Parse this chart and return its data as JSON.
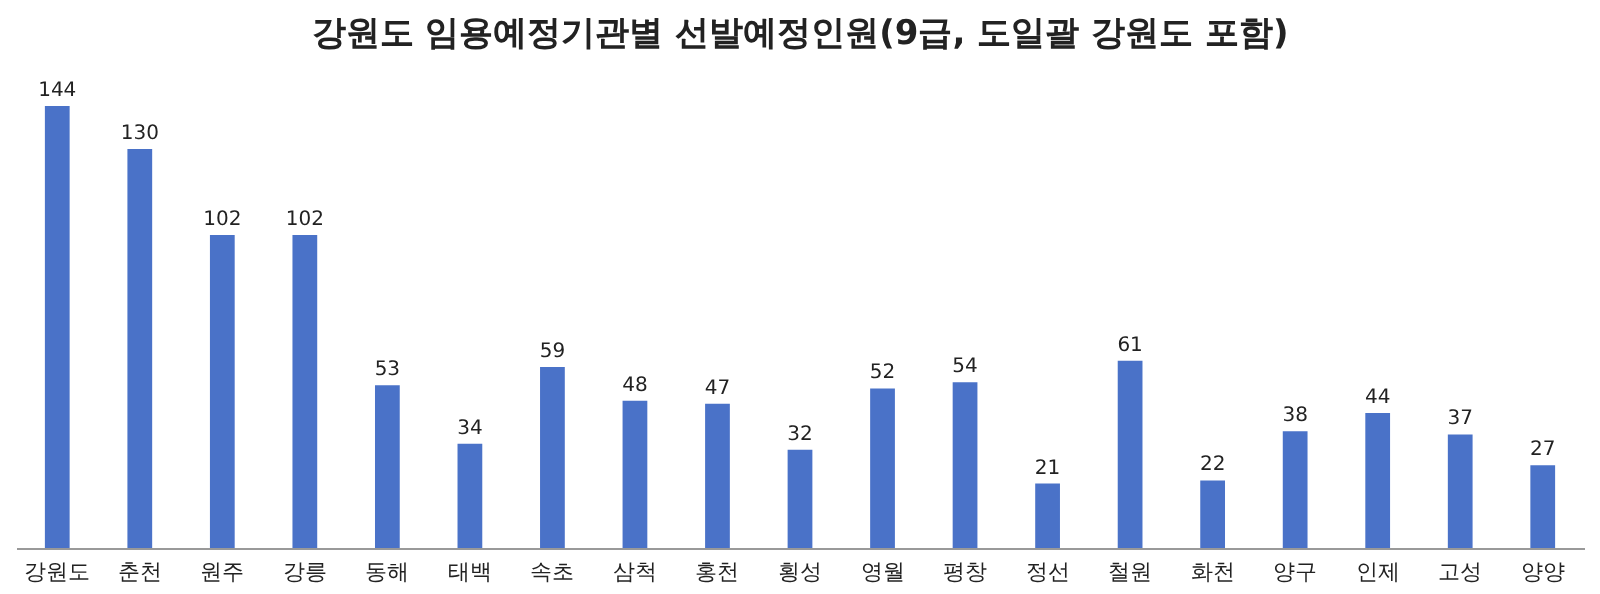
{
  "chart_data": {
    "type": "bar",
    "title": "강원도 임용예정기관별 선발예정인원(9급, 도일괄 강원도 포함)",
    "categories": [
      "강원도",
      "춘천",
      "원주",
      "강릉",
      "동해",
      "태백",
      "속초",
      "삼척",
      "홍천",
      "횡성",
      "영월",
      "평창",
      "정선",
      "철원",
      "화천",
      "양구",
      "인제",
      "고성",
      "양양"
    ],
    "values": [
      144,
      130,
      102,
      102,
      53,
      34,
      59,
      48,
      47,
      32,
      52,
      54,
      21,
      61,
      22,
      38,
      44,
      37,
      27
    ],
    "color": "#4a72c8",
    "data_labels": true
  }
}
